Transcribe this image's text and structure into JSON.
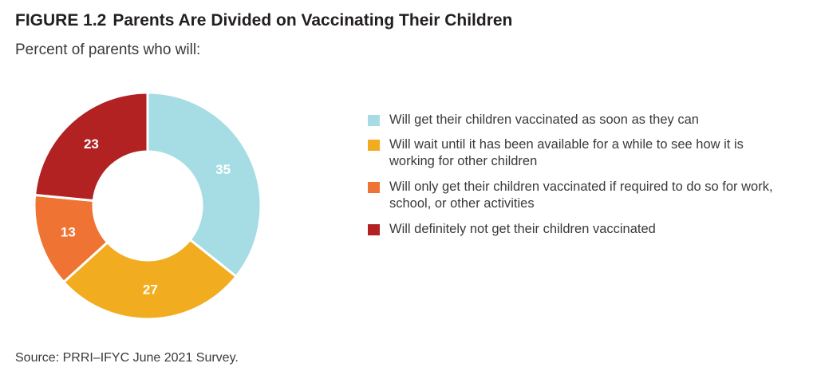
{
  "figure_number": "FIGURE 1.2",
  "title": "Parents Are Divided on Vaccinating Their Children",
  "subtitle": "Percent of parents who will:",
  "source": "Source: PRRI–IFYC June 2021 Survey.",
  "chart_data": {
    "type": "pie",
    "variant": "donut",
    "categories": [
      "Will get their children vaccinated as soon as they can",
      "Will wait until it has been available for a while to see how it is working for other children",
      "Will only get their children vaccinated if required to do so for work, school, or other activities",
      "Will definitely not get their children vaccinated"
    ],
    "values": [
      35,
      27,
      13,
      23
    ],
    "colors": [
      "#a6dde4",
      "#f2ac1f",
      "#ef7434",
      "#b22222"
    ],
    "label_color": "#ffffff",
    "start_angle": "12 o'clock",
    "direction": "clockwise",
    "legend_position": "right"
  }
}
